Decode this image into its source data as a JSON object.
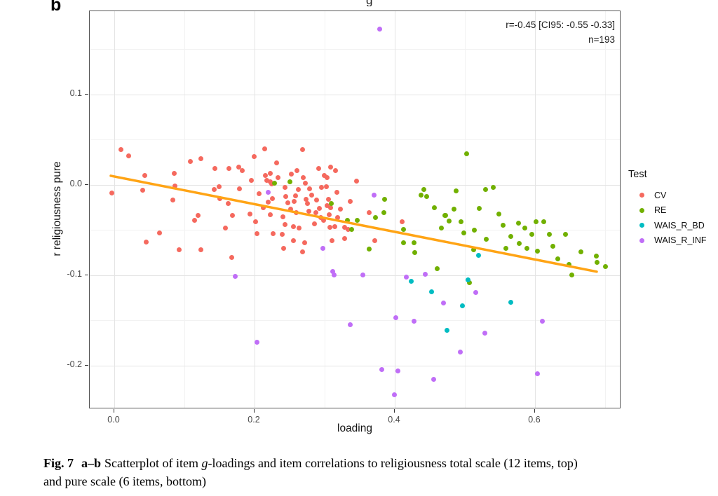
{
  "panel_label": "b",
  "title_fragment": "g",
  "chart_data": {
    "type": "scatter",
    "title": "",
    "xlabel": "loading",
    "ylabel": "r religiousness pure",
    "legend_position": "right",
    "grid": "on",
    "annotation": {
      "line1": "r=-0.45 [CI95: -0.55 -0.33]",
      "line2": "n=193"
    },
    "axis": {
      "xlim": [
        -0.035,
        0.723
      ],
      "ylim": [
        -0.248,
        0.192
      ],
      "x_ticks": [
        {
          "v": 0.0,
          "label": "0.0"
        },
        {
          "v": 0.2,
          "label": "0.2"
        },
        {
          "v": 0.4,
          "label": "0.4"
        },
        {
          "v": 0.6,
          "label": "0.6"
        }
      ],
      "y_ticks": [
        {
          "v": 0.1,
          "label": "0.1"
        },
        {
          "v": 0.0,
          "label": "0.0"
        },
        {
          "v": -0.1,
          "label": "-0.1"
        },
        {
          "v": -0.2,
          "label": "-0.2"
        }
      ],
      "x_minor": [
        0.1,
        0.3,
        0.5,
        0.7
      ],
      "y_minor": [
        0.15,
        0.05,
        -0.05,
        -0.15
      ]
    },
    "trend": {
      "type": "linear",
      "color": "#FFA415",
      "x1": -0.005,
      "y1": 0.01,
      "x2": 0.688,
      "y2": -0.096
    },
    "series": [
      {
        "name": "CV",
        "color": "#F5695E",
        "points": [
          [
            0.009,
            0.039
          ],
          [
            0.02,
            0.032
          ],
          [
            -0.004,
            -0.009
          ],
          [
            0.043,
            0.01
          ],
          [
            0.04,
            -0.006
          ],
          [
            0.045,
            -0.063
          ],
          [
            0.064,
            -0.053
          ],
          [
            0.083,
            -0.017
          ],
          [
            0.085,
            0.013
          ],
          [
            0.086,
            -0.001
          ],
          [
            0.092,
            -0.072
          ],
          [
            0.108,
            0.026
          ],
          [
            0.123,
            0.029
          ],
          [
            0.114,
            -0.039
          ],
          [
            0.119,
            -0.034
          ],
          [
            0.123,
            -0.072
          ],
          [
            0.143,
            0.018
          ],
          [
            0.142,
            -0.005
          ],
          [
            0.149,
            -0.002
          ],
          [
            0.15,
            -0.015
          ],
          [
            0.158,
            -0.048
          ],
          [
            0.163,
            0.018
          ],
          [
            0.162,
            -0.021
          ],
          [
            0.168,
            -0.034
          ],
          [
            0.167,
            -0.08
          ],
          [
            0.177,
            0.02
          ],
          [
            0.178,
            -0.004
          ],
          [
            0.182,
            0.016
          ],
          [
            0.193,
            -0.032
          ],
          [
            0.195,
            0.005
          ],
          [
            0.199,
            0.031
          ],
          [
            0.201,
            -0.041
          ],
          [
            0.203,
            -0.054
          ],
          [
            0.214,
            0.04
          ],
          [
            0.215,
            0.01
          ],
          [
            0.217,
            0.005
          ],
          [
            0.219,
            -0.019
          ],
          [
            0.222,
            0.013
          ],
          [
            0.222,
            0.003
          ],
          [
            0.224,
            0.001
          ],
          [
            0.222,
            -0.033
          ],
          [
            0.226,
            -0.054
          ],
          [
            0.231,
            0.024
          ],
          [
            0.239,
            -0.055
          ],
          [
            0.24,
            -0.035
          ],
          [
            0.241,
            -0.07
          ],
          [
            0.243,
            -0.003
          ],
          [
            0.243,
            -0.044
          ],
          [
            0.244,
            -0.013
          ],
          [
            0.251,
            -0.027
          ],
          [
            0.255,
            -0.046
          ],
          [
            0.255,
            -0.062
          ],
          [
            0.256,
            -0.018
          ],
          [
            0.258,
            -0.012
          ],
          [
            0.26,
            0.016
          ],
          [
            0.262,
            -0.005
          ],
          [
            0.268,
            0.039
          ],
          [
            0.268,
            -0.074
          ],
          [
            0.269,
            0.008
          ],
          [
            0.271,
            -0.064
          ],
          [
            0.273,
            -0.016
          ],
          [
            0.275,
            -0.021
          ],
          [
            0.277,
            -0.029
          ],
          [
            0.278,
            -0.004
          ],
          [
            0.287,
            -0.031
          ],
          [
            0.288,
            -0.017
          ],
          [
            0.291,
            0.018
          ],
          [
            0.294,
            -0.036
          ],
          [
            0.295,
            -0.003
          ],
          [
            0.298,
            -0.039
          ],
          [
            0.302,
            -0.002
          ],
          [
            0.303,
            0.008
          ],
          [
            0.303,
            -0.023
          ],
          [
            0.305,
            -0.016
          ],
          [
            0.307,
            -0.047
          ],
          [
            0.308,
            0.02
          ],
          [
            0.308,
            -0.025
          ],
          [
            0.31,
            -0.062
          ],
          [
            0.314,
            -0.046
          ],
          [
            0.315,
            0.016
          ],
          [
            0.318,
            -0.036
          ],
          [
            0.328,
            -0.047
          ],
          [
            0.328,
            -0.059
          ],
          [
            0.333,
            -0.049
          ],
          [
            0.345,
            0.004
          ],
          [
            0.363,
            -0.031
          ],
          [
            0.371,
            -0.062
          ],
          [
            0.41,
            -0.041
          ],
          [
            0.206,
            -0.01
          ],
          [
            0.212,
            -0.025
          ],
          [
            0.225,
            -0.015
          ],
          [
            0.233,
            0.008
          ],
          [
            0.247,
            -0.02
          ],
          [
            0.252,
            0.012
          ],
          [
            0.259,
            -0.031
          ],
          [
            0.263,
            -0.048
          ],
          [
            0.272,
            0.002
          ],
          [
            0.281,
            -0.011
          ],
          [
            0.285,
            -0.043
          ],
          [
            0.292,
            -0.026
          ],
          [
            0.299,
            0.01
          ],
          [
            0.306,
            -0.033
          ],
          [
            0.317,
            -0.008
          ],
          [
            0.322,
            -0.027
          ],
          [
            0.336,
            -0.018
          ]
        ]
      },
      {
        "name": "RE",
        "color": "#71B000",
        "points": [
          [
            0.228,
            0.002
          ],
          [
            0.25,
            0.003
          ],
          [
            0.309,
            -0.021
          ],
          [
            0.332,
            -0.039
          ],
          [
            0.346,
            -0.039
          ],
          [
            0.338,
            -0.049
          ],
          [
            0.385,
            -0.016
          ],
          [
            0.384,
            -0.031
          ],
          [
            0.372,
            -0.036
          ],
          [
            0.363,
            -0.071
          ],
          [
            0.412,
            -0.049
          ],
          [
            0.427,
            -0.064
          ],
          [
            0.412,
            -0.064
          ],
          [
            0.428,
            -0.075
          ],
          [
            0.441,
            -0.005
          ],
          [
            0.437,
            -0.011
          ],
          [
            0.445,
            -0.013
          ],
          [
            0.456,
            -0.025
          ],
          [
            0.471,
            -0.034
          ],
          [
            0.46,
            -0.093
          ],
          [
            0.502,
            0.034
          ],
          [
            0.487,
            -0.007
          ],
          [
            0.529,
            -0.005
          ],
          [
            0.54,
            -0.003
          ],
          [
            0.484,
            -0.027
          ],
          [
            0.52,
            -0.026
          ],
          [
            0.472,
            -0.034
          ],
          [
            0.477,
            -0.04
          ],
          [
            0.494,
            -0.041
          ],
          [
            0.498,
            -0.053
          ],
          [
            0.513,
            -0.05
          ],
          [
            0.554,
            -0.045
          ],
          [
            0.576,
            -0.042
          ],
          [
            0.601,
            -0.041
          ],
          [
            0.612,
            -0.041
          ],
          [
            0.565,
            -0.057
          ],
          [
            0.577,
            -0.065
          ],
          [
            0.588,
            -0.07
          ],
          [
            0.62,
            -0.055
          ],
          [
            0.643,
            -0.055
          ],
          [
            0.603,
            -0.073
          ],
          [
            0.632,
            -0.082
          ],
          [
            0.665,
            -0.074
          ],
          [
            0.687,
            -0.079
          ],
          [
            0.688,
            -0.086
          ],
          [
            0.512,
            -0.072
          ],
          [
            0.652,
            -0.1
          ],
          [
            0.506,
            -0.108
          ],
          [
            0.466,
            -0.048
          ],
          [
            0.53,
            -0.06
          ],
          [
            0.558,
            -0.07
          ],
          [
            0.595,
            -0.055
          ],
          [
            0.625,
            -0.068
          ],
          [
            0.648,
            -0.088
          ],
          [
            0.7,
            -0.09
          ],
          [
            0.548,
            -0.032
          ],
          [
            0.585,
            -0.048
          ]
        ]
      },
      {
        "name": "WAIS_R_BD",
        "color": "#00BCC2",
        "points": [
          [
            0.423,
            -0.107
          ],
          [
            0.474,
            -0.161
          ],
          [
            0.504,
            -0.105
          ],
          [
            0.496,
            -0.134
          ],
          [
            0.565,
            -0.13
          ],
          [
            0.519,
            -0.078
          ],
          [
            0.452,
            -0.118
          ]
        ]
      },
      {
        "name": "WAIS_R_INF",
        "color": "#C06EF7",
        "points": [
          [
            0.378,
            0.172
          ],
          [
            0.219,
            -0.008
          ],
          [
            0.37,
            -0.011
          ],
          [
            0.297,
            -0.07
          ],
          [
            0.172,
            -0.101
          ],
          [
            0.311,
            -0.096
          ],
          [
            0.313,
            -0.1
          ],
          [
            0.354,
            -0.1
          ],
          [
            0.416,
            -0.102
          ],
          [
            0.443,
            -0.099
          ],
          [
            0.469,
            -0.131
          ],
          [
            0.401,
            -0.147
          ],
          [
            0.427,
            -0.151
          ],
          [
            0.336,
            -0.155
          ],
          [
            0.203,
            -0.174
          ],
          [
            0.381,
            -0.204
          ],
          [
            0.404,
            -0.206
          ],
          [
            0.455,
            -0.215
          ],
          [
            0.399,
            -0.232
          ],
          [
            0.515,
            -0.119
          ],
          [
            0.61,
            -0.151
          ],
          [
            0.528,
            -0.164
          ],
          [
            0.493,
            -0.185
          ],
          [
            0.603,
            -0.209
          ]
        ]
      }
    ]
  },
  "legend": {
    "title": "Test",
    "items": [
      {
        "label": "CV",
        "color": "#F5695E"
      },
      {
        "label": "RE",
        "color": "#71B000"
      },
      {
        "label": "WAIS_R_BD",
        "color": "#00BCC2"
      },
      {
        "label": "WAIS_R_INF",
        "color": "#C06EF7"
      }
    ]
  },
  "caption": {
    "fig_label": "Fig. 7",
    "range_label": "a–b",
    "text_before_g": "Scatterplot of item ",
    "g_italic": "g",
    "line1_rest": "-loadings and item correlations to religiousness total scale (12 items, top)",
    "line2": "and pure scale (6 items, bottom)"
  }
}
